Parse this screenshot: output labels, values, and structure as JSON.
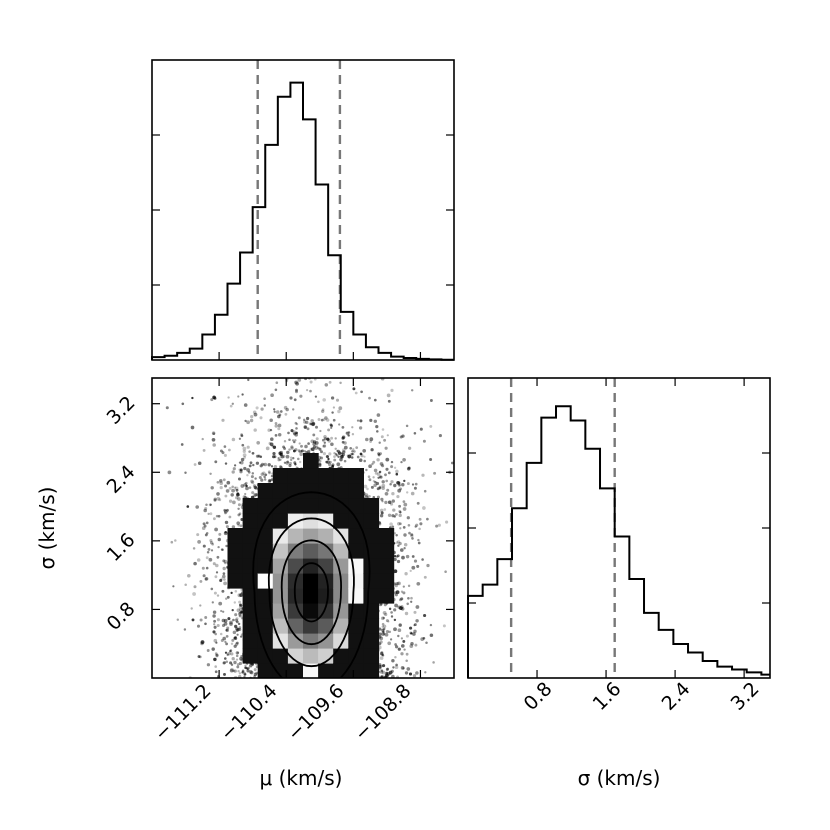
{
  "chart_data": [
    {
      "type": "histogram",
      "panel": "mu-marginal",
      "x_bin_edges": [
        -112.0,
        -111.85,
        -111.7,
        -111.55,
        -111.4,
        -111.25,
        -111.1,
        -110.95,
        -110.8,
        -110.65,
        -110.5,
        -110.35,
        -110.2,
        -110.05,
        -109.9,
        -109.75,
        -109.6,
        -109.45,
        -109.3,
        -109.15,
        -109.0,
        -108.85,
        -108.7,
        -108.55,
        -108.4
      ],
      "counts": [
        0.01,
        0.015,
        0.025,
        0.04,
        0.09,
        0.16,
        0.27,
        0.38,
        0.54,
        0.76,
        0.93,
        0.98,
        0.85,
        0.62,
        0.37,
        0.17,
        0.09,
        0.045,
        0.025,
        0.012,
        0.007,
        0.004,
        0.002,
        0.001
      ],
      "quantile_lines": [
        -110.74,
        -109.76
      ],
      "xlim": [
        -112.0,
        -108.4
      ],
      "ylim": [
        0,
        1.06
      ]
    },
    {
      "type": "histogram2d",
      "panel": "mu-sigma-joint",
      "xlabel": "μ (km/s)",
      "ylabel": "σ (km/s)",
      "xticks": [
        "−111.2",
        "−110.4",
        "−109.6",
        "−108.8"
      ],
      "xtick_values": [
        -111.2,
        -110.4,
        -109.6,
        -108.8
      ],
      "yticks": [
        "0.8",
        "1.6",
        "2.4",
        "3.2"
      ],
      "ytick_values": [
        0.8,
        1.6,
        2.4,
        3.2
      ],
      "xlim": [
        -112.0,
        -108.4
      ],
      "ylim": [
        0.0,
        3.5
      ],
      "peak": [
        -110.1,
        1.0
      ],
      "contour_levels": 4
    },
    {
      "type": "histogram",
      "panel": "sigma-marginal",
      "xlabel": "σ (km/s)",
      "xticks": [
        "0.8",
        "1.6",
        "2.4",
        "3.2"
      ],
      "xtick_values": [
        0.8,
        1.6,
        2.4,
        3.2
      ],
      "x_bin_edges": [
        0.0,
        0.17,
        0.34,
        0.51,
        0.68,
        0.85,
        1.02,
        1.19,
        1.36,
        1.53,
        1.7,
        1.87,
        2.04,
        2.21,
        2.38,
        2.55,
        2.72,
        2.89,
        3.06,
        3.23,
        3.4,
        3.5
      ],
      "counts": [
        0.29,
        0.33,
        0.42,
        0.6,
        0.76,
        0.92,
        0.96,
        0.91,
        0.81,
        0.67,
        0.5,
        0.35,
        0.23,
        0.17,
        0.12,
        0.09,
        0.06,
        0.04,
        0.03,
        0.02,
        0.012
      ],
      "quantile_lines": [
        0.5,
        1.7
      ],
      "xlim": [
        0.0,
        3.5
      ],
      "ylim": [
        0,
        1.06
      ]
    }
  ]
}
